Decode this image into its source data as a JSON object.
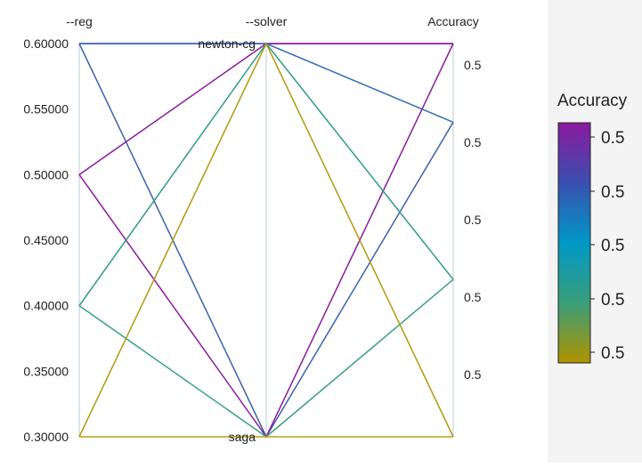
{
  "chart_data": {
    "type": "parallel_coordinates",
    "axes": [
      {
        "name": "--reg",
        "kind": "numeric",
        "range": [
          0.3,
          0.6
        ],
        "ticks": [
          "0.60000",
          "0.55000",
          "0.50000",
          "0.45000",
          "0.40000",
          "0.35000",
          "0.30000"
        ],
        "tick_values": [
          0.6,
          0.55,
          0.5,
          0.45,
          0.4,
          0.35,
          0.3
        ]
      },
      {
        "name": "--solver",
        "kind": "categorical",
        "categories": [
          "newton-cg",
          "saga"
        ]
      },
      {
        "name": "Accuracy",
        "kind": "numeric",
        "ticks": [
          "0.5",
          "0.5",
          "0.5",
          "0.5",
          "0.5"
        ]
      }
    ],
    "lines": [
      {
        "reg": 0.6,
        "solver": "saga",
        "accuracy_level": 0.8,
        "color": "#3a62ad"
      },
      {
        "reg": 0.6,
        "solver": "newton-cg",
        "accuracy_level": 1.0,
        "color": "#8c1e99"
      },
      {
        "reg": 0.5,
        "solver": "newton-cg",
        "accuracy_level": 1.0,
        "color": "#8a1c9c"
      },
      {
        "reg": 0.5,
        "solver": "saga",
        "accuracy_level": 1.0,
        "color": "#8a1c9c"
      },
      {
        "reg": 0.6,
        "solver": "newton-cg",
        "accuracy_level": 0.8,
        "color": "#2f6db3"
      },
      {
        "reg": 0.4,
        "solver": "newton-cg",
        "accuracy_level": 0.4,
        "color": "#2f9a88"
      },
      {
        "reg": 0.4,
        "solver": "saga",
        "accuracy_level": 0.4,
        "color": "#3aa080"
      },
      {
        "reg": 0.3,
        "solver": "newton-cg",
        "accuracy_level": 0.0,
        "color": "#b09a10"
      },
      {
        "reg": 0.3,
        "solver": "saga",
        "accuracy_level": 0.0,
        "color": "#b5a010"
      }
    ],
    "colorbar": {
      "title": "Accuracy",
      "labels": [
        "0.5",
        "0.5",
        "0.5",
        "0.5",
        "0.5"
      ],
      "colors": [
        "#8b1a9e",
        "#3a4fb0",
        "#0099c6",
        "#3a9e7a",
        "#b09300"
      ]
    }
  }
}
